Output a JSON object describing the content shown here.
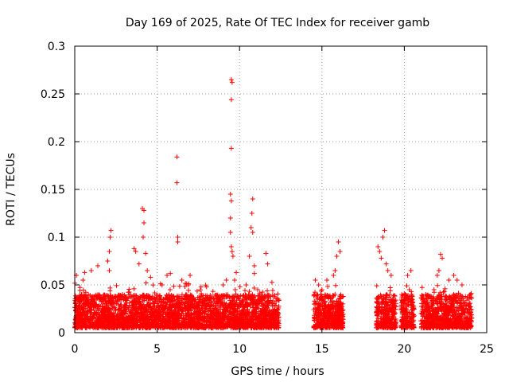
{
  "chart_data": {
    "type": "scatter",
    "title": "Day 169 of 2025, Rate Of TEC Index for receiver gamb",
    "xlabel": "GPS time / hours",
    "ylabel": "ROTI / TECUs",
    "xlim": [
      0,
      25
    ],
    "ylim": [
      0,
      0.3
    ],
    "x_ticks": [
      0,
      5,
      10,
      15,
      20,
      25
    ],
    "x_tick_labels": [
      "0",
      "5",
      "10",
      "15",
      "20",
      "25"
    ],
    "y_ticks": [
      0,
      0.05,
      0.1,
      0.15,
      0.2,
      0.25,
      0.3
    ],
    "y_tick_labels": [
      "0",
      "0.05",
      "0.1",
      "0.15",
      "0.2",
      "0.25",
      "0.3"
    ],
    "grid": true,
    "marker": "+",
    "color": "#ff0000",
    "data_gap_hours": [
      [
        12.4,
        14.5
      ],
      [
        16.3,
        18.3
      ]
    ],
    "series": [
      {
        "name": "ROTI",
        "points": [
          [
            0.1,
            0.06
          ],
          [
            0.5,
            0.055
          ],
          [
            0.6,
            0.063
          ],
          [
            1.0,
            0.065
          ],
          [
            1.4,
            0.07
          ],
          [
            2.0,
            0.075
          ],
          [
            2.1,
            0.085
          ],
          [
            2.15,
            0.1
          ],
          [
            2.2,
            0.107
          ],
          [
            2.1,
            0.065
          ],
          [
            3.6,
            0.088
          ],
          [
            3.7,
            0.085
          ],
          [
            3.9,
            0.072
          ],
          [
            4.1,
            0.13
          ],
          [
            4.2,
            0.128
          ],
          [
            4.2,
            0.115
          ],
          [
            4.15,
            0.1
          ],
          [
            4.3,
            0.083
          ],
          [
            4.4,
            0.065
          ],
          [
            4.6,
            0.058
          ],
          [
            5.3,
            0.05
          ],
          [
            5.6,
            0.06
          ],
          [
            5.8,
            0.062
          ],
          [
            6.2,
            0.184
          ],
          [
            6.2,
            0.157
          ],
          [
            6.25,
            0.1
          ],
          [
            6.25,
            0.095
          ],
          [
            6.5,
            0.055
          ],
          [
            6.9,
            0.05
          ],
          [
            7.0,
            0.06
          ],
          [
            8.0,
            0.048
          ],
          [
            9.0,
            0.05
          ],
          [
            9.2,
            0.055
          ],
          [
            9.5,
            0.265
          ],
          [
            9.55,
            0.262
          ],
          [
            9.5,
            0.244
          ],
          [
            9.5,
            0.193
          ],
          [
            9.45,
            0.145
          ],
          [
            9.5,
            0.138
          ],
          [
            9.45,
            0.12
          ],
          [
            9.45,
            0.105
          ],
          [
            9.5,
            0.09
          ],
          [
            9.55,
            0.085
          ],
          [
            9.6,
            0.08
          ],
          [
            9.7,
            0.055
          ],
          [
            9.8,
            0.063
          ],
          [
            10.4,
            0.05
          ],
          [
            10.6,
            0.08
          ],
          [
            10.7,
            0.11
          ],
          [
            10.75,
            0.125
          ],
          [
            10.8,
            0.14
          ],
          [
            10.8,
            0.105
          ],
          [
            10.9,
            0.07
          ],
          [
            10.9,
            0.062
          ],
          [
            11.1,
            0.045
          ],
          [
            11.6,
            0.083
          ],
          [
            11.7,
            0.072
          ],
          [
            11.3,
            0.038
          ],
          [
            14.6,
            0.055
          ],
          [
            14.8,
            0.05
          ],
          [
            15.0,
            0.045
          ],
          [
            15.3,
            0.055
          ],
          [
            15.8,
            0.065
          ],
          [
            15.9,
            0.08
          ],
          [
            16.0,
            0.095
          ],
          [
            16.1,
            0.085
          ],
          [
            15.7,
            0.06
          ],
          [
            18.4,
            0.09
          ],
          [
            18.5,
            0.085
          ],
          [
            18.6,
            0.078
          ],
          [
            18.7,
            0.1
          ],
          [
            18.8,
            0.107
          ],
          [
            18.9,
            0.072
          ],
          [
            19.0,
            0.065
          ],
          [
            19.2,
            0.06
          ],
          [
            20.2,
            0.06
          ],
          [
            20.4,
            0.065
          ],
          [
            20.3,
            0.045
          ],
          [
            21.3,
            0.04
          ],
          [
            21.8,
            0.045
          ],
          [
            22.0,
            0.06
          ],
          [
            22.1,
            0.065
          ],
          [
            22.2,
            0.082
          ],
          [
            22.3,
            0.078
          ],
          [
            22.7,
            0.055
          ],
          [
            23.0,
            0.06
          ],
          [
            23.2,
            0.055
          ],
          [
            23.5,
            0.05
          ]
        ]
      }
    ],
    "dense_band": {
      "description": "continuous dense cluster of + markers near baseline",
      "y_range": [
        0.005,
        0.04
      ],
      "hour_ranges": [
        [
          0,
          12.4
        ],
        [
          14.5,
          16.3
        ],
        [
          18.3,
          19.5
        ],
        [
          19.8,
          20.6
        ],
        [
          21.0,
          24.1
        ]
      ]
    }
  }
}
